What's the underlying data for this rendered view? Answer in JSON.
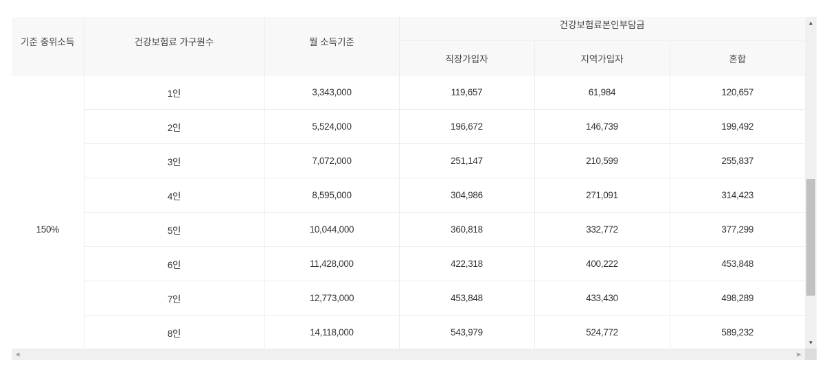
{
  "table": {
    "header": {
      "median_income": "기준 중위소득",
      "household_count": "건강보험료 가구원수",
      "monthly_income": "월 소득기준",
      "premium_group": "건강보험료본인부담금",
      "employee": "직장가입자",
      "regional": "지역가입자",
      "mixed": "혼합"
    },
    "group_label": "150%",
    "rows": [
      {
        "household": "1인",
        "income": "3,343,000",
        "employee": "119,657",
        "regional": "61,984",
        "mixed": "120,657"
      },
      {
        "household": "2인",
        "income": "5,524,000",
        "employee": "196,672",
        "regional": "146,739",
        "mixed": "199,492"
      },
      {
        "household": "3인",
        "income": "7,072,000",
        "employee": "251,147",
        "regional": "210,599",
        "mixed": "255,837"
      },
      {
        "household": "4인",
        "income": "8,595,000",
        "employee": "304,986",
        "regional": "271,091",
        "mixed": "314,423"
      },
      {
        "household": "5인",
        "income": "10,044,000",
        "employee": "360,818",
        "regional": "332,772",
        "mixed": "377,299"
      },
      {
        "household": "6인",
        "income": "11,428,000",
        "employee": "422,318",
        "regional": "400,222",
        "mixed": "453,848"
      },
      {
        "household": "7인",
        "income": "12,773,000",
        "employee": "453,848",
        "regional": "433,430",
        "mixed": "498,289"
      },
      {
        "household": "8인",
        "income": "14,118,000",
        "employee": "543,979",
        "regional": "524,772",
        "mixed": "589,232"
      }
    ]
  },
  "scrollbar": {
    "up_icon": "▲",
    "down_icon": "▼",
    "left_icon": "◀",
    "right_icon": "▶"
  }
}
